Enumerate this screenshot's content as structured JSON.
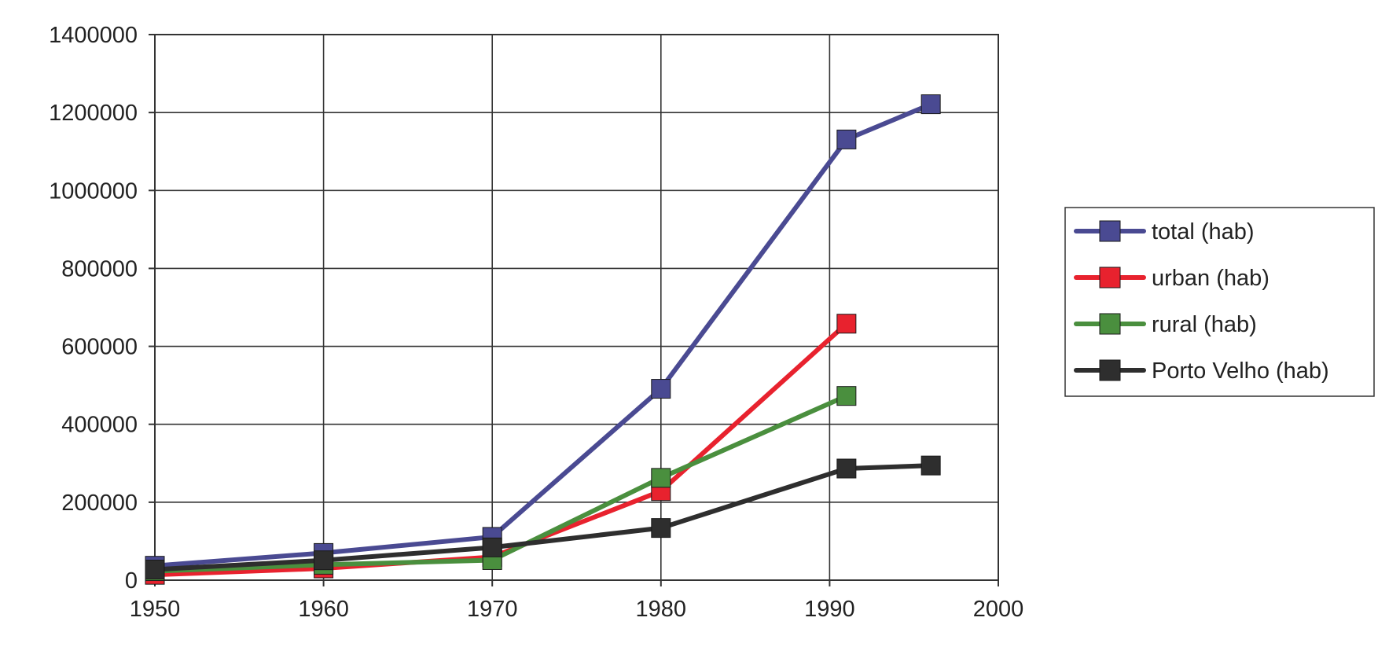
{
  "chart_data": {
    "type": "line",
    "title": "",
    "xlabel": "",
    "ylabel": "",
    "xlim": [
      1950,
      2000
    ],
    "ylim": [
      0,
      1400000
    ],
    "x_ticks": [
      1950,
      1960,
      1970,
      1980,
      1990,
      2000
    ],
    "y_ticks": [
      0,
      200000,
      400000,
      600000,
      800000,
      1000000,
      1200000,
      1400000
    ],
    "grid": true,
    "legend_position": "right",
    "series": [
      {
        "name": "total (hab)",
        "color": "#4a4a92",
        "marker": "square",
        "points": [
          {
            "x": 1950,
            "y": 36935
          },
          {
            "x": 1960,
            "y": 69792
          },
          {
            "x": 1970,
            "y": 111064
          },
          {
            "x": 1980,
            "y": 491069
          },
          {
            "x": 1991,
            "y": 1130874
          },
          {
            "x": 1996,
            "y": 1221290
          }
        ]
      },
      {
        "name": "urban (hab)",
        "color": "#e8222e",
        "marker": "square",
        "points": [
          {
            "x": 1950,
            "y": 13816
          },
          {
            "x": 1960,
            "y": 30186
          },
          {
            "x": 1970,
            "y": 59564
          },
          {
            "x": 1980,
            "y": 228539
          },
          {
            "x": 1991,
            "y": 658172
          }
        ]
      },
      {
        "name": "rural (hab)",
        "color": "#4a8f3e",
        "marker": "square",
        "points": [
          {
            "x": 1950,
            "y": 23119
          },
          {
            "x": 1960,
            "y": 39606
          },
          {
            "x": 1970,
            "y": 51500
          },
          {
            "x": 1980,
            "y": 262530
          },
          {
            "x": 1991,
            "y": 472702
          }
        ]
      },
      {
        "name": "Porto Velho (hab)",
        "color": "#2e2e2e",
        "marker": "square",
        "points": [
          {
            "x": 1950,
            "y": 27244
          },
          {
            "x": 1960,
            "y": 51049
          },
          {
            "x": 1970,
            "y": 84048
          },
          {
            "x": 1980,
            "y": 133898
          },
          {
            "x": 1991,
            "y": 286471
          },
          {
            "x": 1996,
            "y": 294227
          }
        ]
      }
    ]
  }
}
